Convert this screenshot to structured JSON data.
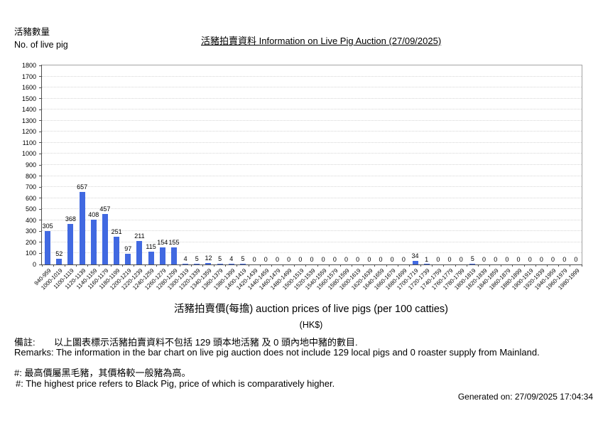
{
  "header": {
    "axis_unit_zh": "活豬數量",
    "axis_unit_en": "No. of live pig",
    "title": "活豬拍賣資料 Information on Live Pig Auction (27/09/2025)"
  },
  "chart_data": {
    "type": "bar",
    "title": "活豬拍賣資料 Information on Live Pig Auction (27/09/2025)",
    "xlabel": "活豬拍賣價(每擔) auction prices of live pigs (per 100 catties)",
    "xlabel_unit": "(HK$)",
    "ylabel": "活豬數量 No. of live pig",
    "ylim": [
      0,
      1800
    ],
    "ytick_step": 100,
    "grid": true,
    "legend_position": "none",
    "bar_color": "#4169e1",
    "categories": [
      "940-959",
      "1000-1019",
      "1100-1119",
      "1120-1139",
      "1140-1159",
      "1160-1179",
      "1180-1199",
      "1200-1219",
      "1220-1239",
      "1240-1259",
      "1260-1279",
      "1280-1299",
      "1300-1319",
      "1320-1339",
      "1340-1359",
      "1360-1379",
      "1380-1399",
      "1400-1419",
      "1420-1439",
      "1440-1459",
      "1460-1479",
      "1480-1499",
      "1500-1519",
      "1520-1539",
      "1540-1559",
      "1560-1579",
      "1580-1599",
      "1600-1619",
      "1620-1639",
      "1640-1659",
      "1660-1679",
      "1680-1699",
      "1700-1719",
      "1720-1739",
      "1740-1759",
      "1760-1779",
      "1780-1799",
      "1800-1819",
      "1820-1839",
      "1840-1859",
      "1860-1879",
      "1880-1899",
      "1900-1919",
      "1920-1939",
      "1940-1959",
      "1960-1979",
      "1980-1999"
    ],
    "values": [
      305,
      52,
      368,
      657,
      408,
      457,
      251,
      97,
      211,
      115,
      154,
      155,
      4,
      5,
      12,
      5,
      4,
      5,
      0,
      0,
      0,
      0,
      0,
      0,
      0,
      0,
      0,
      0,
      0,
      0,
      0,
      0,
      34,
      1,
      0,
      0,
      0,
      5,
      0,
      0,
      0,
      0,
      0,
      0,
      0,
      0,
      0
    ]
  },
  "footer": {
    "remark_label_zh": "備註:",
    "remark_text_zh": "以上圖表標示活豬拍賣資料不包括 129 頭本地活豬 及 0 頭內地中豬的數目.",
    "remark_en": "Remarks: The information in the bar chart on live pig auction does not include 129 local pigs and 0 roaster supply from Mainland.",
    "note_zh": "#: 最高價屬黑毛豬，其價格較一般豬為高。",
    "note_en": "#: The highest price refers to Black Pig, price of which is comparatively higher.",
    "generated_on": "Generated on: 27/09/2025 17:04:34"
  }
}
